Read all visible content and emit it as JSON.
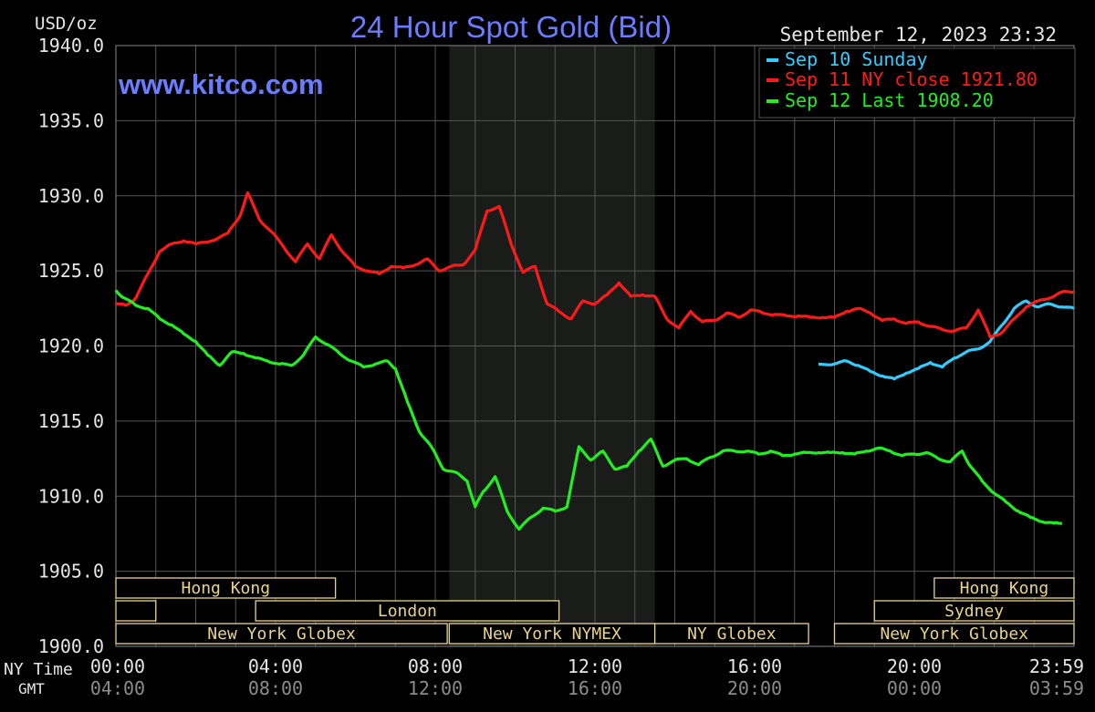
{
  "title": "24 Hour Spot Gold (Bid)",
  "website": "www.kitco.com",
  "y_unit": "USD/oz",
  "timestamp": "September 12, 2023 23:32",
  "legend": [
    {
      "label": "Sep 10 Sunday",
      "color": "#33ccff"
    },
    {
      "label": "Sep 11 NY close 1921.80",
      "color": "#ff1a1a"
    },
    {
      "label": "Sep 12 Last 1908.20",
      "color": "#22ee22"
    }
  ],
  "row_labels": {
    "ny_time": "NY Time",
    "gmt": "GMT"
  },
  "gmt_ticks": [
    "04:00",
    "08:00",
    "12:00",
    "16:00",
    "20:00",
    "00:00",
    "03:59"
  ],
  "colors": {
    "background": "#000000",
    "grid": "#555555",
    "axis_text": "#e6e6e6",
    "gmt_text": "#8c8c8c",
    "title": "#6b7cff",
    "session_box": "#e8d48a",
    "nymex_shade": "#1a1c1a"
  },
  "market_sessions": [
    {
      "label": "Hong Kong",
      "row": 0,
      "start_hour": 0,
      "end_hour": 5.5
    },
    {
      "label": "",
      "row": 1,
      "start_hour": 0,
      "end_hour": 1.0
    },
    {
      "label": "London",
      "row": 1,
      "start_hour": 3.5,
      "end_hour": 11.1
    },
    {
      "label": "New York Globex",
      "row": 2,
      "start_hour": 0,
      "end_hour": 8.3
    },
    {
      "label": "New York NYMEX",
      "row": 2,
      "start_hour": 8.35,
      "end_hour": 13.5
    },
    {
      "label": "NY Globex",
      "row": 2,
      "start_hour": 13.5,
      "end_hour": 17.35
    },
    {
      "label": "Hong Kong",
      "row": 0,
      "start_hour": 20.5,
      "end_hour": 24
    },
    {
      "label": "Sydney",
      "row": 1,
      "start_hour": 19.0,
      "end_hour": 24
    },
    {
      "label": "New York Globex",
      "row": 2,
      "start_hour": 18.0,
      "end_hour": 24
    }
  ],
  "chart_data": {
    "type": "line",
    "title": "24 Hour Spot Gold (Bid)",
    "ylabel": "USD/oz",
    "xlabel": "NY Time",
    "xlim": [
      0,
      24
    ],
    "ylim": [
      1900,
      1940
    ],
    "grid": true,
    "legend_position": "top-right",
    "x_ticks": [
      "00:00",
      "04:00",
      "08:00",
      "12:00",
      "16:00",
      "20:00",
      "23:59"
    ],
    "y_ticks": [
      "1940.0",
      "1935.0",
      "1930.0",
      "1925.0",
      "1920.0",
      "1915.0",
      "1910.0",
      "1905.0",
      "1900.0"
    ],
    "shaded_region": {
      "start_hour": 8.35,
      "end_hour": 13.5
    },
    "series": [
      {
        "name": "Sep 10 Sunday",
        "color": "#33ccff",
        "x": [
          17.6,
          18.0,
          18.3,
          18.6,
          18.9,
          19.2,
          19.5,
          19.8,
          20.1,
          20.4,
          20.7,
          21.0,
          21.3,
          21.6,
          21.9,
          22.2,
          22.5,
          22.8,
          23.1,
          23.4,
          23.7,
          24.0
        ],
        "y": [
          1918.8,
          1918.8,
          1919.0,
          1918.7,
          1918.3,
          1918.0,
          1917.8,
          1918.2,
          1918.5,
          1918.9,
          1918.6,
          1919.2,
          1919.6,
          1919.8,
          1920.3,
          1921.4,
          1922.5,
          1923.0,
          1922.6,
          1922.8,
          1922.6,
          1922.5
        ]
      },
      {
        "name": "Sep 11 NY close 1921.80",
        "color": "#ff1a1a",
        "x": [
          0,
          0.25,
          0.5,
          0.8,
          1.1,
          1.4,
          1.7,
          2.0,
          2.4,
          2.8,
          3.1,
          3.3,
          3.6,
          3.9,
          4.2,
          4.5,
          4.8,
          5.1,
          5.4,
          5.7,
          6.0,
          6.3,
          6.6,
          6.9,
          7.2,
          7.5,
          7.8,
          8.1,
          8.4,
          8.7,
          9.0,
          9.3,
          9.6,
          9.9,
          10.2,
          10.5,
          10.8,
          11.1,
          11.4,
          11.7,
          12.0,
          12.3,
          12.6,
          12.9,
          13.2,
          13.5,
          13.8,
          14.1,
          14.4,
          14.7,
          15.0,
          15.3,
          15.6,
          15.9,
          16.2,
          16.5,
          16.8,
          17.1,
          17.4,
          17.7,
          18.0,
          18.3,
          18.6,
          18.9,
          19.2,
          19.5,
          19.8,
          20.1,
          20.4,
          20.7,
          21.0,
          21.3,
          21.6,
          21.9,
          22.2,
          22.5,
          22.8,
          23.1,
          23.4,
          23.7,
          24.0
        ],
        "y": [
          1922.8,
          1922.7,
          1923.2,
          1924.8,
          1926.3,
          1926.8,
          1927.0,
          1926.8,
          1927.0,
          1927.5,
          1928.6,
          1930.2,
          1928.4,
          1927.6,
          1926.6,
          1925.6,
          1926.8,
          1925.8,
          1927.4,
          1926.2,
          1925.3,
          1925.0,
          1924.8,
          1925.3,
          1925.2,
          1925.4,
          1925.8,
          1925.0,
          1925.3,
          1925.4,
          1926.4,
          1929.0,
          1929.3,
          1926.8,
          1924.9,
          1925.3,
          1922.8,
          1922.3,
          1921.8,
          1923.0,
          1922.8,
          1923.4,
          1924.2,
          1923.3,
          1923.4,
          1923.3,
          1921.8,
          1921.2,
          1922.3,
          1921.6,
          1921.7,
          1922.2,
          1921.9,
          1922.4,
          1922.2,
          1922.1,
          1922.0,
          1922.0,
          1921.9,
          1921.9,
          1921.9,
          1922.3,
          1922.5,
          1922.2,
          1921.7,
          1921.8,
          1921.5,
          1921.6,
          1921.3,
          1921.1,
          1921.0,
          1921.2,
          1922.4,
          1920.6,
          1920.9,
          1921.8,
          1922.6,
          1923.0,
          1923.2,
          1923.6,
          1923.6
        ]
      },
      {
        "name": "Sep 12 Last 1908.20",
        "color": "#22ee22",
        "x": [
          0,
          0.2,
          0.5,
          0.8,
          1.1,
          1.4,
          1.7,
          2.0,
          2.3,
          2.6,
          2.9,
          3.2,
          3.5,
          3.8,
          4.1,
          4.4,
          4.7,
          5.0,
          5.3,
          5.6,
          5.9,
          6.2,
          6.5,
          6.8,
          7.0,
          7.3,
          7.6,
          7.9,
          8.2,
          8.5,
          8.8,
          9.0,
          9.2,
          9.5,
          9.8,
          10.1,
          10.4,
          10.7,
          11.0,
          11.3,
          11.6,
          11.9,
          12.2,
          12.5,
          12.8,
          13.1,
          13.4,
          13.7,
          14.0,
          14.3,
          14.6,
          14.9,
          15.2,
          15.5,
          15.8,
          16.1,
          16.4,
          16.7,
          17.0,
          17.3,
          17.6,
          17.9,
          18.2,
          18.5,
          18.8,
          19.1,
          19.4,
          19.7,
          20.0,
          20.3,
          20.6,
          20.9,
          21.2,
          21.4,
          21.7,
          22.0,
          22.3,
          22.6,
          22.9,
          23.2,
          23.5,
          23.7
        ],
        "y": [
          1923.7,
          1923.2,
          1922.7,
          1922.5,
          1921.8,
          1921.4,
          1920.8,
          1920.3,
          1919.4,
          1918.7,
          1919.6,
          1919.5,
          1919.2,
          1919.0,
          1918.8,
          1918.7,
          1919.4,
          1920.6,
          1920.1,
          1919.5,
          1919.0,
          1918.6,
          1918.8,
          1919.0,
          1918.5,
          1916.3,
          1914.3,
          1913.3,
          1911.8,
          1911.6,
          1911.0,
          1909.3,
          1910.3,
          1911.3,
          1909.0,
          1907.8,
          1908.6,
          1909.2,
          1909.0,
          1909.3,
          1913.3,
          1912.4,
          1913.0,
          1911.8,
          1912.0,
          1913.0,
          1913.8,
          1912.0,
          1912.4,
          1912.5,
          1912.1,
          1912.6,
          1913.0,
          1913.0,
          1913.0,
          1912.8,
          1913.0,
          1912.7,
          1912.8,
          1912.9,
          1912.9,
          1912.9,
          1912.9,
          1912.8,
          1913.0,
          1913.2,
          1913.0,
          1912.7,
          1912.8,
          1912.9,
          1912.5,
          1912.3,
          1913.0,
          1912.0,
          1911.0,
          1910.2,
          1909.6,
          1909.0,
          1908.6,
          1908.3,
          1908.2,
          1908.2
        ]
      }
    ]
  }
}
